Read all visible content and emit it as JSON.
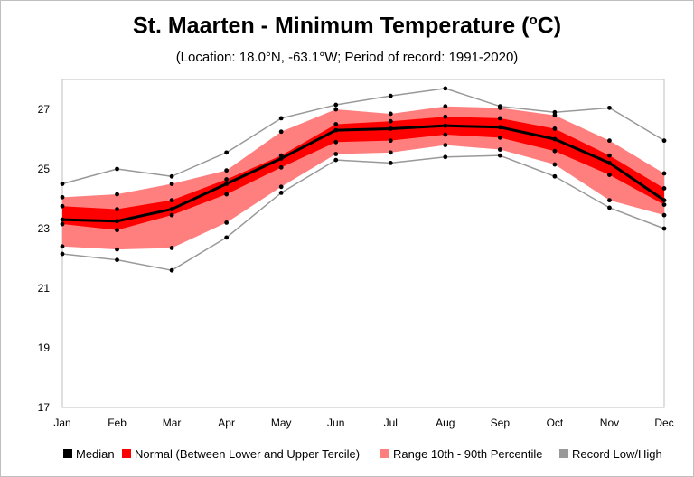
{
  "title_main": "St. Maarten - Minimum Temperature (",
  "title_sup": "o",
  "title_end": "C)",
  "subtitle": "(Location: 18.0°N, -63.1°W; Period of record: 1991-2020)",
  "chart_data": {
    "type": "line",
    "categories": [
      "Jan",
      "Feb",
      "Mar",
      "Apr",
      "May",
      "Jun",
      "Jul",
      "Aug",
      "Sep",
      "Oct",
      "Nov",
      "Dec"
    ],
    "ylim": [
      17,
      28
    ],
    "yticks": [
      17,
      19,
      21,
      23,
      25,
      27
    ],
    "grid": false,
    "legend_position": "bottom",
    "series": [
      {
        "name": "Median",
        "values": [
          23.3,
          23.25,
          23.65,
          24.5,
          25.35,
          26.3,
          26.35,
          26.45,
          26.4,
          26.0,
          25.2,
          23.95
        ]
      },
      {
        "name": "Normal (Between Lower and Upper Tercile)",
        "lower": [
          23.15,
          22.95,
          23.45,
          24.15,
          25.05,
          25.9,
          25.95,
          26.15,
          26.05,
          25.6,
          24.8,
          23.8
        ],
        "upper": [
          23.75,
          23.65,
          23.95,
          24.65,
          25.45,
          26.5,
          26.6,
          26.75,
          26.7,
          26.35,
          25.45,
          24.35
        ]
      },
      {
        "name": "Range 10th - 90th Percentile",
        "lower": [
          22.4,
          22.3,
          22.35,
          23.2,
          24.4,
          25.5,
          25.55,
          25.8,
          25.65,
          25.15,
          23.95,
          23.45
        ],
        "upper": [
          24.05,
          24.15,
          24.5,
          24.95,
          26.25,
          27.0,
          26.85,
          27.1,
          27.05,
          26.8,
          25.95,
          24.85
        ]
      },
      {
        "name": "Record Low/High",
        "lower": [
          22.15,
          21.95,
          21.6,
          22.7,
          24.2,
          25.3,
          25.2,
          25.4,
          25.45,
          24.75,
          23.7,
          23.0
        ],
        "upper": [
          24.5,
          25.0,
          24.75,
          25.55,
          26.7,
          27.15,
          27.45,
          27.7,
          27.1,
          26.9,
          27.05,
          25.95
        ]
      }
    ],
    "colors": {
      "median": "#000000",
      "normal": "#ff0000",
      "range": "#ff7f7f",
      "record": "#999999"
    }
  }
}
